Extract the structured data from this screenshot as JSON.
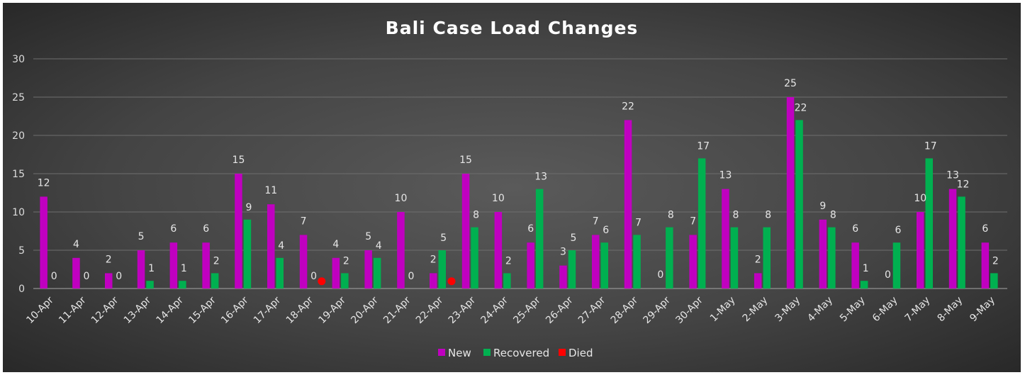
{
  "chart_data": {
    "type": "bar",
    "title": "Bali Case Load Changes",
    "xlabel": "",
    "ylabel": "",
    "ylim": [
      0,
      30
    ],
    "yticks": [
      0,
      5,
      10,
      15,
      20,
      25,
      30
    ],
    "grid": true,
    "legend_position": "bottom",
    "categories": [
      "10-Apr",
      "11-Apr",
      "12-Apr",
      "13-Apr",
      "14-Apr",
      "15-Apr",
      "16-Apr",
      "17-Apr",
      "18-Apr",
      "19-Apr",
      "20-Apr",
      "21-Apr",
      "22-Apr",
      "23-Apr",
      "24-Apr",
      "25-Apr",
      "26-Apr",
      "27-Apr",
      "28-Apr",
      "29-Apr",
      "30-Apr",
      "1-May",
      "2-May",
      "3-May",
      "4-May",
      "5-May",
      "6-May",
      "7-May",
      "8-May",
      "9-May"
    ],
    "series": [
      {
        "name": "New",
        "color": "#c000c0",
        "values": [
          12,
          4,
          2,
          5,
          6,
          6,
          15,
          11,
          7,
          4,
          5,
          10,
          2,
          15,
          10,
          6,
          3,
          7,
          22,
          0,
          7,
          13,
          2,
          25,
          9,
          6,
          0,
          10,
          13,
          6
        ],
        "labels": [
          "12",
          "4",
          "2",
          "5",
          "6",
          "6",
          "15",
          "11",
          "7",
          "4",
          "5",
          "10",
          "2",
          "15",
          "10",
          "6",
          "3",
          "7",
          "22",
          "0",
          "7",
          "13",
          "2",
          "25",
          "9",
          "6",
          "0",
          "10",
          "13",
          "6"
        ]
      },
      {
        "name": "Recovered",
        "color": "#00b050",
        "values": [
          0,
          0,
          0,
          1,
          1,
          2,
          9,
          4,
          0,
          2,
          4,
          0,
          5,
          8,
          2,
          13,
          5,
          6,
          7,
          8,
          17,
          8,
          8,
          22,
          8,
          1,
          6,
          17,
          12,
          2
        ],
        "labels": [
          "0",
          "0",
          "0",
          "1",
          "1",
          "2",
          "9",
          "4",
          "0",
          "2",
          "4",
          "0",
          "5",
          "8",
          "2",
          "13",
          "5",
          "6",
          "7",
          "8",
          "17",
          "8",
          "8",
          "22",
          "8",
          "1",
          "6",
          "17",
          "12",
          "2"
        ]
      },
      {
        "name": "Died",
        "color": "#ff0000",
        "points": [
          {
            "category": "18-Apr",
            "value": 1
          },
          {
            "category": "22-Apr",
            "value": 1
          }
        ]
      }
    ]
  }
}
